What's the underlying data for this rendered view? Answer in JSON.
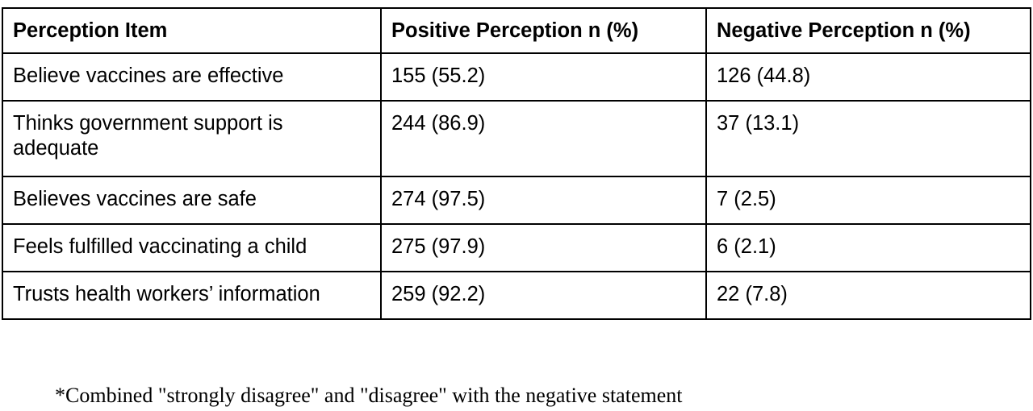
{
  "table": {
    "headers": [
      "Perception Item",
      "Positive Perception n (%)",
      "Negative Perception n (%)"
    ],
    "rows": [
      {
        "item": "Believe vaccines are effective",
        "positive": "155 (55.2)",
        "negative": "126 (44.8)"
      },
      {
        "item": "Thinks government support is adequate",
        "positive": "244 (86.9)",
        "negative": "37 (13.1)"
      },
      {
        "item": "Believes vaccines are safe",
        "positive": "274 (97.5)",
        "negative": "7 (2.5)"
      },
      {
        "item": "Feels fulfilled vaccinating a child",
        "positive": "275 (97.9)",
        "negative": "6 (2.1)"
      },
      {
        "item": "Trusts health workers’ information",
        "positive": "259 (92.2)",
        "negative": "22 (7.8)"
      }
    ]
  },
  "footnote": "*Combined \"strongly disagree\" and \"disagree\" with the negative statement"
}
